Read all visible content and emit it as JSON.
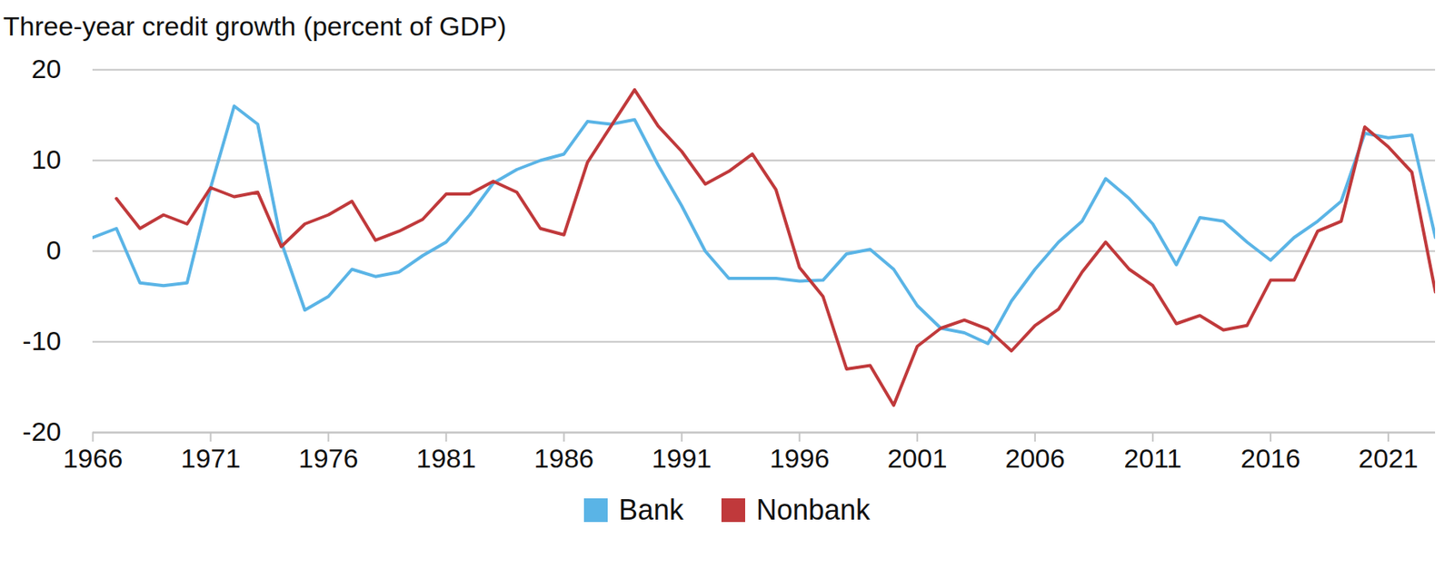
{
  "chart_data": {
    "type": "line",
    "title": "Three-year credit growth (percent of GDP)",
    "x": [
      1966,
      1967,
      1968,
      1969,
      1970,
      1971,
      1972,
      1973,
      1974,
      1975,
      1976,
      1977,
      1978,
      1979,
      1980,
      1981,
      1982,
      1983,
      1984,
      1985,
      1986,
      1987,
      1988,
      1989,
      1990,
      1991,
      1992,
      1993,
      1994,
      1995,
      1996,
      1997,
      1998,
      1999,
      2000,
      2001,
      2002,
      2003,
      2004,
      2005,
      2006,
      2007,
      2008,
      2009,
      2010,
      2011,
      2012,
      2013,
      2014,
      2015,
      2016,
      2017,
      2018,
      2019,
      2020,
      2021,
      2022,
      2023
    ],
    "series": [
      {
        "name": "Bank",
        "color": "#5ab4e6",
        "values": [
          1.5,
          2.5,
          -3.5,
          -3.8,
          -3.5,
          7,
          16,
          14,
          1,
          -6.5,
          -5,
          -2,
          -2.8,
          -2.3,
          -0.5,
          1,
          4,
          7.5,
          9,
          10,
          10.7,
          14.3,
          14,
          14.5,
          9.5,
          5,
          0,
          -3,
          -3,
          -3,
          -3.3,
          -3.2,
          -0.3,
          0.2,
          -2,
          -6,
          -8.5,
          -9,
          -10.2,
          -5.5,
          -2,
          1,
          3.3,
          8,
          5.8,
          3,
          -1.5,
          3.7,
          3.3,
          1,
          -1,
          1.5,
          3.3,
          5.5,
          13,
          12.5,
          12.8,
          1.5
        ]
      },
      {
        "name": "Nonbank",
        "color": "#c0393b",
        "values": [
          null,
          5.8,
          2.5,
          4,
          3,
          7,
          6,
          6.5,
          0.5,
          3,
          4,
          5.5,
          1.2,
          2.2,
          3.5,
          6.3,
          6.3,
          7.7,
          6.5,
          2.5,
          1.8,
          9.8,
          13.8,
          17.8,
          13.8,
          11,
          7.4,
          8.8,
          10.7,
          6.8,
          -1.8,
          -5,
          -13,
          -12.6,
          -17,
          -10.5,
          -8.5,
          -7.6,
          -8.6,
          -11,
          -8.2,
          -6.4,
          -2.3,
          1,
          -2,
          -3.8,
          -8,
          -7.1,
          -8.7,
          -8.2,
          -3.2,
          -3.2,
          2.2,
          3.3,
          13.7,
          11.5,
          8.7,
          -4.5
        ]
      }
    ],
    "xlim": [
      1966,
      2023
    ],
    "xticks": [
      1966,
      1971,
      1976,
      1981,
      1986,
      1991,
      1996,
      2001,
      2006,
      2011,
      2016,
      2021
    ],
    "ylim": [
      -20,
      20
    ],
    "yticks": [
      -20,
      -10,
      0,
      10,
      20
    ],
    "grid": true,
    "legend": "bottom"
  }
}
